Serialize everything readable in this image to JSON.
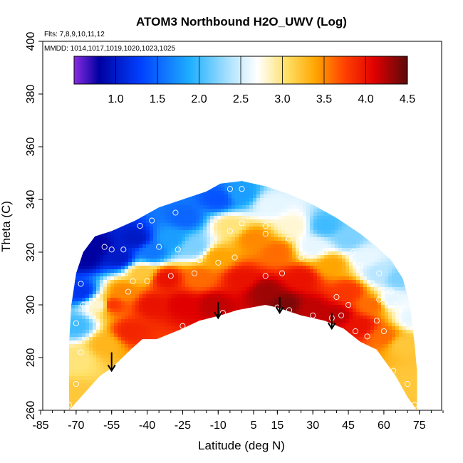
{
  "chart_data": {
    "type": "heatmap",
    "title": "ATOM3 Northbound H2O_UWV (Log)",
    "annotations": {
      "flights": "Flts: 7,8,9,10,11,12",
      "dates": "MMDD: 1014,1017,1019,1020,1023,1025"
    },
    "xlabel": "Latitude (deg N)",
    "ylabel": "Theta (C)",
    "xlim": [
      -85,
      85
    ],
    "ylim": [
      260,
      400
    ],
    "xticks": [
      -85,
      -70,
      -55,
      -40,
      -25,
      -10,
      5,
      15,
      30,
      45,
      60,
      75
    ],
    "xtick_labels": [
      "-85",
      "-70",
      "-55",
      "-40",
      "-25",
      "-10",
      "5",
      "15",
      "30",
      "45",
      "60",
      "75"
    ],
    "yticks": [
      260,
      280,
      300,
      320,
      340,
      360,
      380,
      400
    ],
    "ytick_labels": [
      "260",
      "280",
      "300",
      "320",
      "340",
      "360",
      "380",
      "400"
    ],
    "colorbar": {
      "min": 0.5,
      "max": 4.5,
      "ticks": [
        1.0,
        1.5,
        2.0,
        2.5,
        3.0,
        3.5,
        4.0,
        4.5
      ],
      "tick_labels": [
        "1.0",
        "1.5",
        "2.0",
        "2.5",
        "3.0",
        "3.5",
        "4.0",
        "4.5"
      ],
      "stops": [
        {
          "v": 0.5,
          "c": "#8a2be2"
        },
        {
          "v": 0.8,
          "c": "#0000a0"
        },
        {
          "v": 1.3,
          "c": "#0040ff"
        },
        {
          "v": 1.9,
          "c": "#20b0ff"
        },
        {
          "v": 2.4,
          "c": "#b8e6ff"
        },
        {
          "v": 2.7,
          "c": "#ffffff"
        },
        {
          "v": 3.05,
          "c": "#ffe066"
        },
        {
          "v": 3.4,
          "c": "#ffa500"
        },
        {
          "v": 3.75,
          "c": "#ff4000"
        },
        {
          "v": 4.1,
          "c": "#e00000"
        },
        {
          "v": 4.5,
          "c": "#5a0a0a"
        }
      ]
    },
    "domain_top": [
      [
        -73,
        285
      ],
      [
        -72,
        300
      ],
      [
        -70,
        312
      ],
      [
        -67,
        320
      ],
      [
        -62,
        326
      ],
      [
        -55,
        328
      ],
      [
        -45,
        332
      ],
      [
        -35,
        337
      ],
      [
        -25,
        340
      ],
      [
        -15,
        343
      ],
      [
        -9,
        346
      ],
      [
        0,
        347
      ],
      [
        10,
        345
      ],
      [
        20,
        342
      ],
      [
        30,
        338
      ],
      [
        40,
        333
      ],
      [
        50,
        327
      ],
      [
        57,
        322
      ],
      [
        63,
        317
      ],
      [
        68,
        310
      ],
      [
        71,
        300
      ],
      [
        73,
        285
      ],
      [
        74,
        275
      ]
    ],
    "domain_bottom": [
      [
        -73,
        260
      ],
      [
        -70,
        263
      ],
      [
        -60,
        273
      ],
      [
        -55,
        276
      ],
      [
        -47,
        283
      ],
      [
        -42,
        287
      ],
      [
        -36,
        287
      ],
      [
        -25,
        291
      ],
      [
        -18,
        294
      ],
      [
        -9,
        296
      ],
      [
        -2,
        298
      ],
      [
        10,
        300
      ],
      [
        15,
        299
      ],
      [
        25,
        296
      ],
      [
        35,
        294
      ],
      [
        43,
        291
      ],
      [
        50,
        286
      ],
      [
        57,
        283
      ],
      [
        65,
        273
      ],
      [
        70,
        265
      ],
      [
        74,
        260
      ]
    ],
    "field_samples": [
      {
        "x": -72,
        "y": 265,
        "v": 3.2
      },
      {
        "x": -70,
        "y": 280,
        "v": 3.0
      },
      {
        "x": -70,
        "y": 292,
        "v": 2.0
      },
      {
        "x": -68,
        "y": 305,
        "v": 1.2
      },
      {
        "x": -66,
        "y": 318,
        "v": 0.8
      },
      {
        "x": -62,
        "y": 322,
        "v": 0.8
      },
      {
        "x": -60,
        "y": 300,
        "v": 2.8
      },
      {
        "x": -58,
        "y": 285,
        "v": 3.3
      },
      {
        "x": -55,
        "y": 300,
        "v": 3.8
      },
      {
        "x": -52,
        "y": 318,
        "v": 1.0
      },
      {
        "x": -50,
        "y": 305,
        "v": 3.5
      },
      {
        "x": -47,
        "y": 290,
        "v": 3.9
      },
      {
        "x": -45,
        "y": 325,
        "v": 1.0
      },
      {
        "x": -42,
        "y": 312,
        "v": 3.2
      },
      {
        "x": -38,
        "y": 300,
        "v": 4.0
      },
      {
        "x": -38,
        "y": 320,
        "v": 1.6
      },
      {
        "x": -32,
        "y": 310,
        "v": 4.0
      },
      {
        "x": -30,
        "y": 325,
        "v": 1.8
      },
      {
        "x": -25,
        "y": 300,
        "v": 4.1
      },
      {
        "x": -24,
        "y": 333,
        "v": 1.5
      },
      {
        "x": -20,
        "y": 322,
        "v": 2.2
      },
      {
        "x": -18,
        "y": 310,
        "v": 3.6
      },
      {
        "x": -12,
        "y": 300,
        "v": 4.2
      },
      {
        "x": -10,
        "y": 318,
        "v": 3.4
      },
      {
        "x": -10,
        "y": 340,
        "v": 1.4
      },
      {
        "x": -5,
        "y": 330,
        "v": 3.0
      },
      {
        "x": 0,
        "y": 310,
        "v": 4.0
      },
      {
        "x": 0,
        "y": 342,
        "v": 1.8
      },
      {
        "x": 5,
        "y": 325,
        "v": 3.5
      },
      {
        "x": 10,
        "y": 305,
        "v": 4.3
      },
      {
        "x": 12,
        "y": 338,
        "v": 2.6
      },
      {
        "x": 15,
        "y": 320,
        "v": 3.6
      },
      {
        "x": 18,
        "y": 300,
        "v": 4.4
      },
      {
        "x": 22,
        "y": 330,
        "v": 2.8
      },
      {
        "x": 25,
        "y": 310,
        "v": 4.0
      },
      {
        "x": 30,
        "y": 322,
        "v": 2.6
      },
      {
        "x": 30,
        "y": 298,
        "v": 4.2
      },
      {
        "x": 35,
        "y": 330,
        "v": 2.0
      },
      {
        "x": 38,
        "y": 315,
        "v": 3.4
      },
      {
        "x": 40,
        "y": 296,
        "v": 4.2
      },
      {
        "x": 45,
        "y": 325,
        "v": 2.2
      },
      {
        "x": 45,
        "y": 305,
        "v": 3.8
      },
      {
        "x": 50,
        "y": 292,
        "v": 4.0
      },
      {
        "x": 52,
        "y": 318,
        "v": 2.6
      },
      {
        "x": 55,
        "y": 300,
        "v": 3.6
      },
      {
        "x": 58,
        "y": 312,
        "v": 2.4
      },
      {
        "x": 60,
        "y": 288,
        "v": 3.6
      },
      {
        "x": 63,
        "y": 302,
        "v": 2.6
      },
      {
        "x": 66,
        "y": 310,
        "v": 2.2
      },
      {
        "x": 68,
        "y": 285,
        "v": 3.2
      },
      {
        "x": 70,
        "y": 270,
        "v": 3.2
      },
      {
        "x": 72,
        "y": 295,
        "v": 2.6
      }
    ],
    "sample_points": [
      [
        -73,
        262
      ],
      [
        -70,
        270
      ],
      [
        -68,
        282
      ],
      [
        -70,
        293
      ],
      [
        -67,
        300
      ],
      [
        -68,
        308
      ],
      [
        -65,
        325
      ],
      [
        -58,
        322
      ],
      [
        -55,
        321
      ],
      [
        -50,
        321
      ],
      [
        -48,
        305
      ],
      [
        -46,
        309
      ],
      [
        -43,
        330
      ],
      [
        -40,
        309
      ],
      [
        -38,
        332
      ],
      [
        -35,
        322
      ],
      [
        -30,
        311
      ],
      [
        -28,
        335
      ],
      [
        -27,
        321
      ],
      [
        -25,
        292
      ],
      [
        -20,
        312
      ],
      [
        -18,
        317
      ],
      [
        -10,
        316
      ],
      [
        -8,
        297
      ],
      [
        -5,
        328
      ],
      [
        -3,
        318
      ],
      [
        0,
        331
      ],
      [
        0,
        344
      ],
      [
        -5,
        344
      ],
      [
        10,
        311
      ],
      [
        10,
        327
      ],
      [
        10,
        330
      ],
      [
        15,
        299
      ],
      [
        17,
        312
      ],
      [
        20,
        325
      ],
      [
        20,
        298
      ],
      [
        25,
        318
      ],
      [
        30,
        296
      ],
      [
        35,
        320
      ],
      [
        38,
        295
      ],
      [
        40,
        303
      ],
      [
        42,
        296
      ],
      [
        45,
        300
      ],
      [
        47,
        320
      ],
      [
        48,
        290
      ],
      [
        50,
        315
      ],
      [
        53,
        288
      ],
      [
        55,
        308
      ],
      [
        57,
        294
      ],
      [
        58,
        312
      ],
      [
        58,
        302
      ],
      [
        60,
        290
      ],
      [
        63,
        305
      ],
      [
        64,
        275
      ],
      [
        65,
        300
      ],
      [
        70,
        270
      ],
      [
        73,
        262
      ]
    ],
    "arrows": [
      {
        "x": -55,
        "y_start": 282,
        "y_end": 275
      },
      {
        "x": -10,
        "y_start": 301,
        "y_end": 295
      },
      {
        "x": 16,
        "y_start": 303,
        "y_end": 297
      },
      {
        "x": 38,
        "y_start": 297,
        "y_end": 291
      }
    ]
  }
}
